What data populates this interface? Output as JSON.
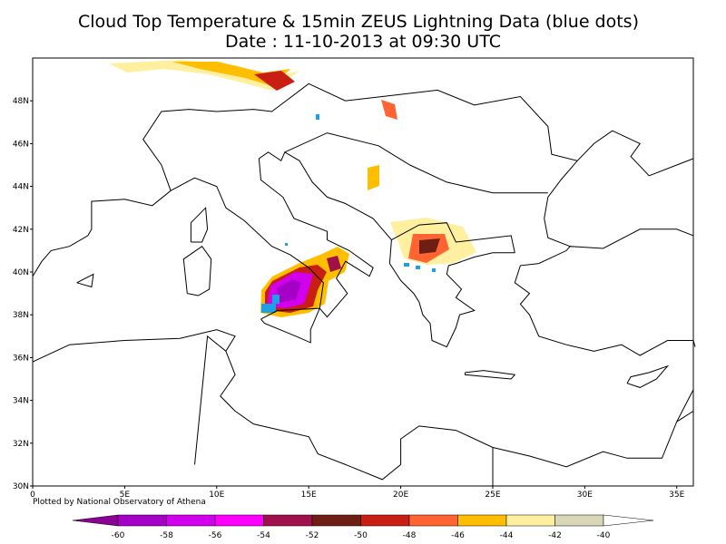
{
  "map": {
    "title": "Cloud Top Temperature & 15min ZEUS Lightning Data (blue dots)",
    "subtitle": "Date : 11-10-2013 at 09:30 UTC",
    "credit": "Plotted by National Observatory of Athena",
    "xlim": [
      0,
      35.9
    ],
    "ylim": [
      30,
      50
    ],
    "xticks": [
      0,
      {
        "value": 5,
        "label": "5E"
      },
      {
        "value": 10,
        "label": "10E"
      },
      {
        "value": 15,
        "label": "15E"
      },
      {
        "value": 20,
        "label": "20E"
      },
      {
        "value": 25,
        "label": "25E"
      },
      {
        "value": 30,
        "label": "30E"
      },
      {
        "value": 35,
        "label": "35E"
      }
    ],
    "yticks": [
      {
        "value": 30,
        "label": "30N"
      },
      {
        "value": 32,
        "label": "32N"
      },
      {
        "value": 34,
        "label": "34N"
      },
      {
        "value": 36,
        "label": "36N"
      },
      {
        "value": 38,
        "label": "38N"
      },
      {
        "value": 40,
        "label": "40N"
      },
      {
        "value": 42,
        "label": "42N"
      },
      {
        "value": 44,
        "label": "44N"
      },
      {
        "value": 46,
        "label": "46N"
      },
      {
        "value": 48,
        "label": "48N"
      }
    ],
    "colorbar": {
      "labels": [
        -60,
        -58,
        -56,
        -54,
        -52,
        -50,
        -48,
        -46,
        -44,
        -42,
        -40
      ],
      "colors": [
        "#8c0096",
        "#a400c8",
        "#d200ec",
        "#ff00ff",
        "#a0104a",
        "#6e1e14",
        "#c81e14",
        "#ff6432",
        "#ffbe00",
        "#fff0a0",
        "#d8d8b8",
        "#ffffff"
      ]
    }
  }
}
